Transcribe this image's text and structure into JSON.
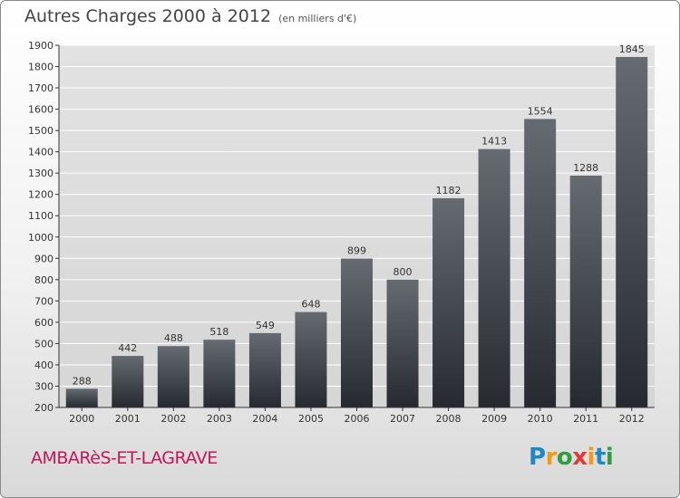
{
  "chart_data": {
    "type": "bar",
    "title": "Autres Charges 2000 à 2012",
    "subtitle": "(en milliers d'€)",
    "categories": [
      "2000",
      "2001",
      "2002",
      "2003",
      "2004",
      "2005",
      "2006",
      "2007",
      "2008",
      "2009",
      "2010",
      "2011",
      "2012"
    ],
    "values": [
      288,
      442,
      488,
      518,
      549,
      648,
      899,
      800,
      1182,
      1413,
      1554,
      1288,
      1845
    ],
    "ylim": [
      200,
      1900
    ],
    "yticks": [
      200,
      300,
      400,
      500,
      600,
      700,
      800,
      900,
      1000,
      1100,
      1200,
      1300,
      1400,
      1500,
      1600,
      1700,
      1800,
      1900
    ],
    "grid": true,
    "xlabel": "",
    "ylabel": ""
  },
  "place_name": "AMBARèS-ET-LAGRAVE",
  "logo": {
    "text": "Proxiti",
    "letters": [
      "P",
      "r",
      "o",
      "x",
      "i",
      "t",
      "i"
    ],
    "colors": [
      "#1e88c7",
      "#f39c12",
      "#2e9e3e",
      "#e53935",
      "#f39c12",
      "#1e88c7",
      "#2e9e3e"
    ]
  },
  "colors": {
    "bar_top": "#666b72",
    "bar_bottom": "#262a30",
    "axis": "#333333",
    "grid": "#ffffff",
    "text": "#333333"
  }
}
